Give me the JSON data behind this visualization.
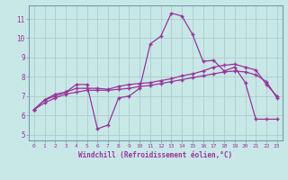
{
  "xlabel": "Windchill (Refroidissement éolien,°C)",
  "background_color": "#c8e8e8",
  "line_color": "#993399",
  "grid_color": "#b0c8c8",
  "spine_color": "#7799aa",
  "x_ticks": [
    0,
    1,
    2,
    3,
    4,
    5,
    6,
    7,
    8,
    9,
    10,
    11,
    12,
    13,
    14,
    15,
    16,
    17,
    18,
    19,
    20,
    21,
    22,
    23
  ],
  "y_ticks": [
    5,
    6,
    7,
    8,
    9,
    10,
    11
  ],
  "xlim": [
    -0.5,
    23.5
  ],
  "ylim": [
    4.7,
    11.7
  ],
  "series": [
    [
      6.3,
      6.8,
      7.1,
      7.2,
      7.6,
      7.6,
      5.3,
      5.5,
      6.9,
      7.0,
      7.4,
      9.7,
      10.1,
      11.3,
      11.15,
      10.2,
      8.8,
      8.85,
      8.3,
      8.5,
      7.7,
      5.8,
      5.8,
      5.8
    ],
    [
      6.3,
      6.8,
      7.0,
      7.2,
      7.4,
      7.4,
      7.4,
      7.35,
      7.5,
      7.6,
      7.65,
      7.7,
      7.8,
      7.9,
      8.05,
      8.15,
      8.3,
      8.5,
      8.6,
      8.65,
      8.5,
      8.35,
      7.6,
      7.0
    ],
    [
      6.3,
      6.65,
      6.9,
      7.1,
      7.2,
      7.3,
      7.3,
      7.3,
      7.35,
      7.4,
      7.5,
      7.55,
      7.65,
      7.75,
      7.85,
      7.95,
      8.05,
      8.15,
      8.25,
      8.3,
      8.25,
      8.1,
      7.75,
      6.9
    ]
  ]
}
